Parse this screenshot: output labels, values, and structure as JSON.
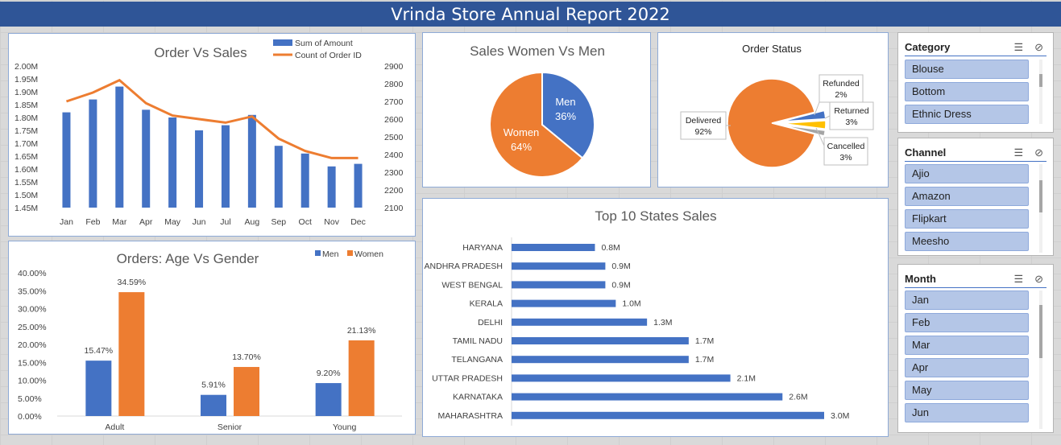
{
  "title": "Vrinda Store Annual Report 2022",
  "colors": {
    "blue": "#4472c4",
    "orange": "#ed7d31",
    "yellow": "#ffc000",
    "banner": "#2f5597",
    "slicer_item": "#b4c6e7"
  },
  "icons": {
    "multi_select": "multi-select-icon",
    "clear_filter": "clear-filter-icon"
  },
  "charts": {
    "order_vs_sales": {
      "title": "Order Vs Sales",
      "type": "bar+line",
      "legend": [
        "Sum of Amount",
        "Count of Order ID"
      ],
      "left_ticks": [
        "2.00M",
        "1.95M",
        "1.90M",
        "1.85M",
        "1.80M",
        "1.75M",
        "1.70M",
        "1.65M",
        "1.60M",
        "1.55M",
        "1.50M",
        "1.45M"
      ],
      "right_ticks": [
        "2900",
        "2800",
        "2700",
        "2600",
        "2500",
        "2400",
        "2300",
        "2200",
        "2100"
      ]
    },
    "age_gender": {
      "title": "Orders: Age Vs Gender",
      "legend": [
        "Men",
        "Women"
      ],
      "y_ticks": [
        "40.00%",
        "35.00%",
        "30.00%",
        "25.00%",
        "20.00%",
        "15.00%",
        "10.00%",
        "5.00%",
        "0.00%"
      ]
    },
    "women_men": {
      "title": "Sales Women Vs Men",
      "labels": [
        "Men",
        "36%",
        "Women",
        "64%"
      ]
    },
    "order_status": {
      "title": "Order Status",
      "labels": [
        {
          "name": "Delivered",
          "pct": "92%"
        },
        {
          "name": "Refunded",
          "pct": "2%"
        },
        {
          "name": "Returned",
          "pct": "3%"
        },
        {
          "name": "Cancelled",
          "pct": "3%"
        }
      ]
    },
    "top_states": {
      "title": "Top 10 States Sales"
    }
  },
  "chart_data": [
    {
      "type": "bar",
      "title": "Order Vs Sales",
      "categories": [
        "Jan",
        "Feb",
        "Mar",
        "Apr",
        "May",
        "Jun",
        "Jul",
        "Aug",
        "Sep",
        "Oct",
        "Nov",
        "Dec"
      ],
      "series": [
        {
          "name": "Sum of Amount",
          "values": [
            1.82,
            1.87,
            1.92,
            1.83,
            1.8,
            1.75,
            1.77,
            1.81,
            1.69,
            1.66,
            1.61,
            1.62
          ]
        },
        {
          "name": "Count of Order ID",
          "values": [
            2700,
            2750,
            2820,
            2690,
            2620,
            2600,
            2580,
            2615,
            2490,
            2420,
            2380,
            2380
          ]
        }
      ],
      "ylim": [
        1.45,
        2.0
      ],
      "y2lim": [
        2100,
        2900
      ]
    },
    {
      "type": "bar",
      "title": "Orders: Age Vs Gender",
      "categories": [
        "Adult",
        "Senior",
        "Young"
      ],
      "series": [
        {
          "name": "Men",
          "values": [
            15.47,
            5.91,
            9.2
          ],
          "labels": [
            "15.47%",
            "5.91%",
            "9.20%"
          ]
        },
        {
          "name": "Women",
          "values": [
            34.59,
            13.7,
            21.13
          ],
          "labels": [
            "34.59%",
            "13.70%",
            "21.13%"
          ]
        }
      ],
      "ylim": [
        0,
        40
      ]
    },
    {
      "type": "pie",
      "title": "Sales Women Vs Men",
      "categories": [
        "Men",
        "Women"
      ],
      "values": [
        36,
        64
      ]
    },
    {
      "type": "pie",
      "title": "Order Status",
      "categories": [
        "Delivered",
        "Refunded",
        "Returned",
        "Cancelled"
      ],
      "values": [
        92,
        2,
        3,
        3
      ]
    },
    {
      "type": "bar",
      "title": "Top 10 States Sales",
      "categories": [
        "HARYANA",
        "ANDHRA PRADESH",
        "WEST BENGAL",
        "KERALA",
        "DELHI",
        "TAMIL NADU",
        "TELANGANA",
        "UTTAR PRADESH",
        "KARNATAKA",
        "MAHARASHTRA"
      ],
      "values": [
        0.8,
        0.9,
        0.9,
        1.0,
        1.3,
        1.7,
        1.7,
        2.1,
        2.6,
        3.0
      ],
      "labels": [
        "0.8M",
        "0.9M",
        "0.9M",
        "1.0M",
        "1.3M",
        "1.7M",
        "1.7M",
        "2.1M",
        "2.6M",
        "3.0M"
      ]
    }
  ],
  "slicers": {
    "category": {
      "title": "Category",
      "items": [
        "Blouse",
        "Bottom",
        "Ethnic Dress"
      ]
    },
    "channel": {
      "title": "Channel",
      "items": [
        "Ajio",
        "Amazon",
        "Flipkart",
        "Meesho"
      ]
    },
    "month": {
      "title": "Month",
      "items": [
        "Jan",
        "Feb",
        "Mar",
        "Apr",
        "May",
        "Jun"
      ]
    }
  }
}
